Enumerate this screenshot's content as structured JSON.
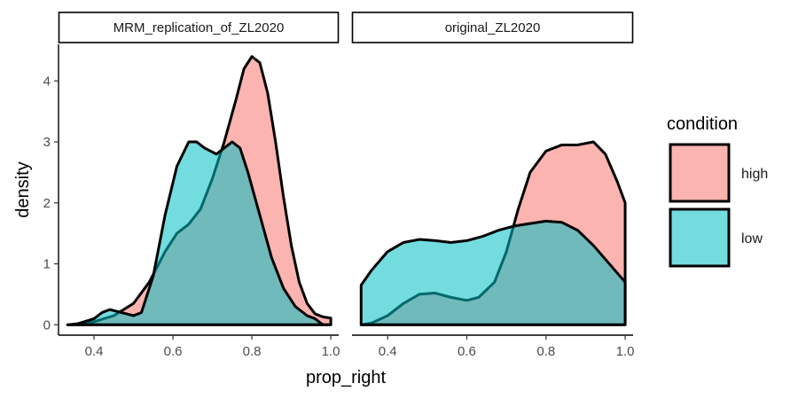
{
  "chart_data": {
    "type": "area",
    "subtype": "density",
    "xlabel": "prop_right",
    "ylabel": "density",
    "xlim": [
      0.31,
      1.02
    ],
    "ylim": [
      -0.17,
      4.6
    ],
    "x_ticks": [
      0.4,
      0.6,
      0.8,
      1.0
    ],
    "x_tick_labels": [
      "0.4",
      "0.6",
      "0.8",
      "1.0"
    ],
    "y_ticks": [
      0,
      1,
      2,
      3,
      4
    ],
    "y_tick_labels": [
      "0",
      "1",
      "2",
      "3",
      "4"
    ],
    "grid": false,
    "legend": {
      "title": "condition",
      "position": "right",
      "entries": [
        {
          "label": "high",
          "color": "#F8766D"
        },
        {
          "label": "low",
          "color": "#00BFC4"
        }
      ]
    },
    "panels": [
      {
        "strip": "MRM_replication_of_ZL2020",
        "series": [
          {
            "name": "high",
            "color": "#F8766D",
            "points": [
              [
                0.333,
                0.0
              ],
              [
                0.36,
                0.01
              ],
              [
                0.4,
                0.05
              ],
              [
                0.45,
                0.15
              ],
              [
                0.5,
                0.35
              ],
              [
                0.54,
                0.7
              ],
              [
                0.58,
                1.2
              ],
              [
                0.61,
                1.5
              ],
              [
                0.64,
                1.65
              ],
              [
                0.67,
                1.9
              ],
              [
                0.7,
                2.4
              ],
              [
                0.73,
                3.0
              ],
              [
                0.76,
                3.7
              ],
              [
                0.78,
                4.2
              ],
              [
                0.8,
                4.4
              ],
              [
                0.82,
                4.3
              ],
              [
                0.84,
                3.8
              ],
              [
                0.86,
                3.0
              ],
              [
                0.88,
                2.1
              ],
              [
                0.9,
                1.3
              ],
              [
                0.92,
                0.7
              ],
              [
                0.94,
                0.35
              ],
              [
                0.96,
                0.18
              ],
              [
                0.98,
                0.13
              ],
              [
                1.0,
                0.11
              ],
              [
                1.0,
                0.0
              ]
            ]
          },
          {
            "name": "low",
            "color": "#00BFC4",
            "points": [
              [
                0.333,
                0.0
              ],
              [
                0.36,
                0.02
              ],
              [
                0.4,
                0.1
              ],
              [
                0.42,
                0.2
              ],
              [
                0.44,
                0.25
              ],
              [
                0.47,
                0.2
              ],
              [
                0.5,
                0.15
              ],
              [
                0.52,
                0.2
              ],
              [
                0.55,
                0.8
              ],
              [
                0.58,
                1.8
              ],
              [
                0.61,
                2.6
              ],
              [
                0.64,
                3.0
              ],
              [
                0.66,
                3.0
              ],
              [
                0.68,
                2.9
              ],
              [
                0.71,
                2.8
              ],
              [
                0.73,
                2.9
              ],
              [
                0.75,
                3.0
              ],
              [
                0.77,
                2.9
              ],
              [
                0.79,
                2.5
              ],
              [
                0.82,
                1.8
              ],
              [
                0.85,
                1.1
              ],
              [
                0.88,
                0.6
              ],
              [
                0.91,
                0.3
              ],
              [
                0.94,
                0.15
              ],
              [
                0.96,
                0.1
              ],
              [
                0.98,
                0.0
              ],
              [
                1.0,
                0.0
              ]
            ]
          }
        ]
      },
      {
        "strip": "original_ZL2020",
        "series": [
          {
            "name": "high",
            "color": "#F8766D",
            "points": [
              [
                0.333,
                0.0
              ],
              [
                0.36,
                0.03
              ],
              [
                0.4,
                0.15
              ],
              [
                0.44,
                0.35
              ],
              [
                0.48,
                0.5
              ],
              [
                0.52,
                0.52
              ],
              [
                0.56,
                0.45
              ],
              [
                0.6,
                0.4
              ],
              [
                0.63,
                0.45
              ],
              [
                0.67,
                0.7
              ],
              [
                0.7,
                1.2
              ],
              [
                0.73,
                1.9
              ],
              [
                0.76,
                2.5
              ],
              [
                0.8,
                2.85
              ],
              [
                0.84,
                2.95
              ],
              [
                0.88,
                2.95
              ],
              [
                0.92,
                3.0
              ],
              [
                0.95,
                2.8
              ],
              [
                0.98,
                2.35
              ],
              [
                1.0,
                2.0
              ],
              [
                1.0,
                0.0
              ]
            ]
          },
          {
            "name": "low",
            "color": "#00BFC4",
            "points": [
              [
                0.333,
                0.0
              ],
              [
                0.333,
                0.65
              ],
              [
                0.36,
                0.9
              ],
              [
                0.4,
                1.2
              ],
              [
                0.44,
                1.35
              ],
              [
                0.48,
                1.4
              ],
              [
                0.52,
                1.38
              ],
              [
                0.56,
                1.35
              ],
              [
                0.6,
                1.38
              ],
              [
                0.64,
                1.45
              ],
              [
                0.68,
                1.55
              ],
              [
                0.72,
                1.62
              ],
              [
                0.76,
                1.66
              ],
              [
                0.8,
                1.7
              ],
              [
                0.84,
                1.68
              ],
              [
                0.88,
                1.55
              ],
              [
                0.92,
                1.3
              ],
              [
                0.96,
                1.0
              ],
              [
                1.0,
                0.7
              ],
              [
                1.0,
                0.0
              ]
            ]
          }
        ]
      }
    ]
  }
}
